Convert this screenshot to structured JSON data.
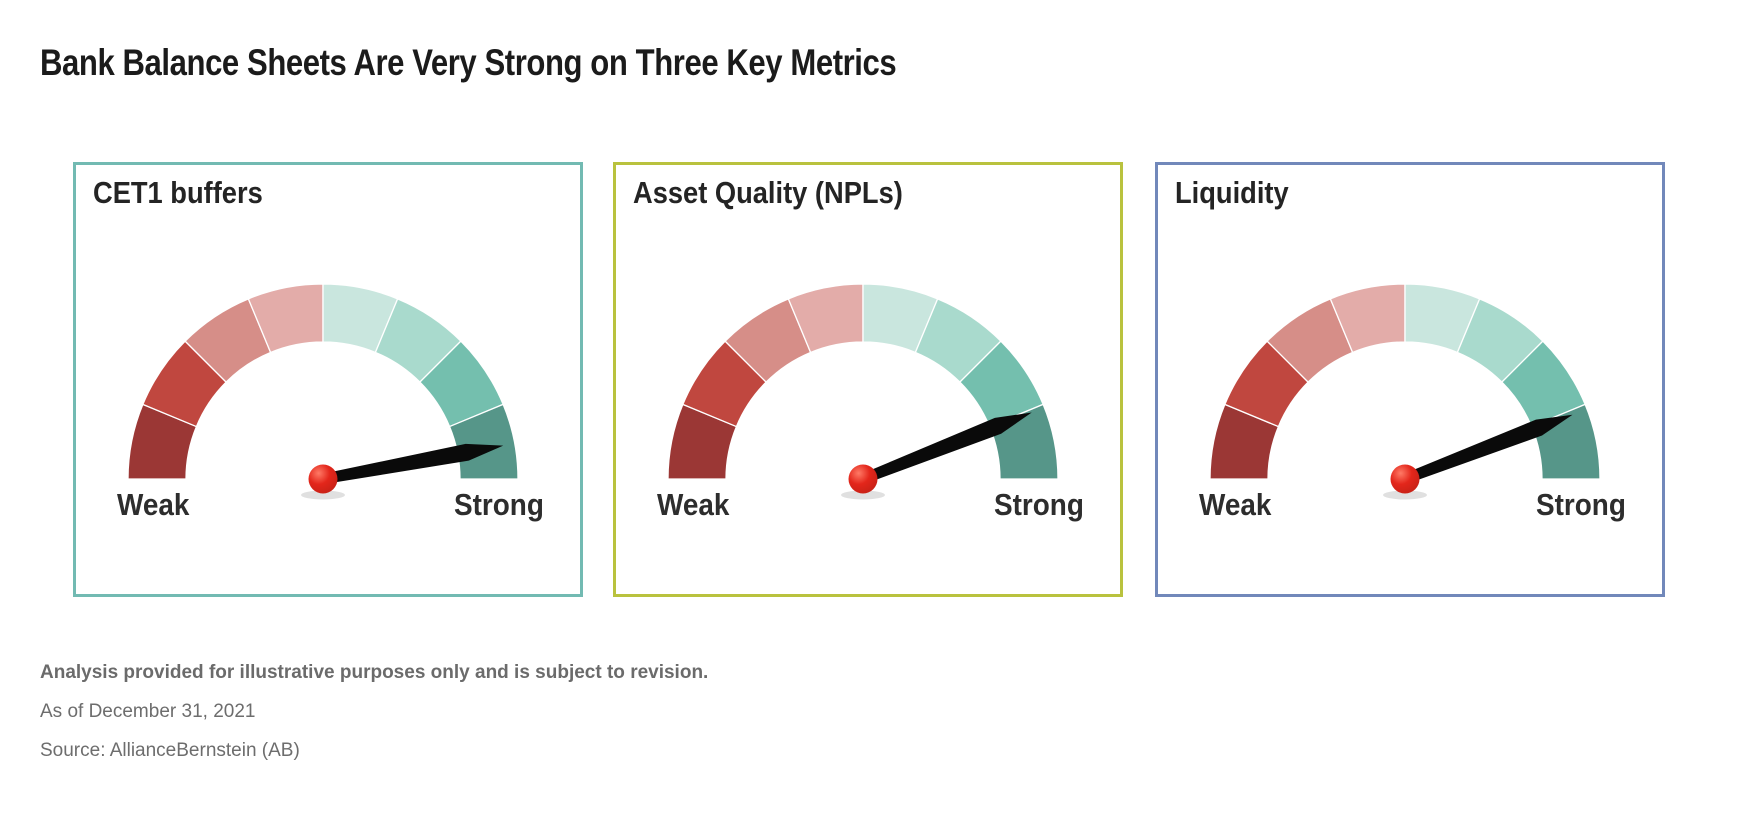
{
  "page_title": "Bank Balance Sheets Are Very Strong on Three Key Metrics",
  "chart_data": {
    "type": "gauge",
    "title": "Bank Balance Sheets Are Very Strong on Three Key Metrics",
    "layout_hint": "three semicircular gauge charts side by side, 180-degree arc of 8 equal 22.5-degree segments fading from dark red (left, Weak) to dark teal (right, Strong), black tapered needle with red pivot ball",
    "scale": {
      "min_label": "Weak",
      "max_label": "Strong",
      "arc_degrees": 180,
      "segment_count": 8,
      "segment_colors": [
        "#9B3735",
        "#C0473F",
        "#D68E88",
        "#E3ACA9",
        "#C9E6DE",
        "#A9DACD",
        "#74BFAE",
        "#569689"
      ],
      "segment_divider_color": "#FFFFFF"
    },
    "needle_color": "#0A0A0A",
    "pivot_color": "#E3261B",
    "gauges": [
      {
        "label": "CET1 buffers",
        "border_color": "#72BAB2",
        "reading": "Strong",
        "needle_angle_above_horizontal_deg": 10.5,
        "needle_length_fraction": 0.94
      },
      {
        "label": "Asset Quality (NPLs)",
        "border_color": "#B9C23E",
        "reading": "Strong",
        "needle_angle_above_horizontal_deg": 21.5,
        "needle_length_fraction": 0.93
      },
      {
        "label": "Liquidity",
        "border_color": "#7188BA",
        "reading": "Strong",
        "needle_angle_above_horizontal_deg": 21.0,
        "needle_length_fraction": 0.92
      }
    ]
  },
  "footnotes": {
    "disclaimer": "Analysis provided for illustrative purposes only and is subject to revision.",
    "as_of": "As of December 31, 2021",
    "source": "Source: AllianceBernstein (AB)"
  }
}
